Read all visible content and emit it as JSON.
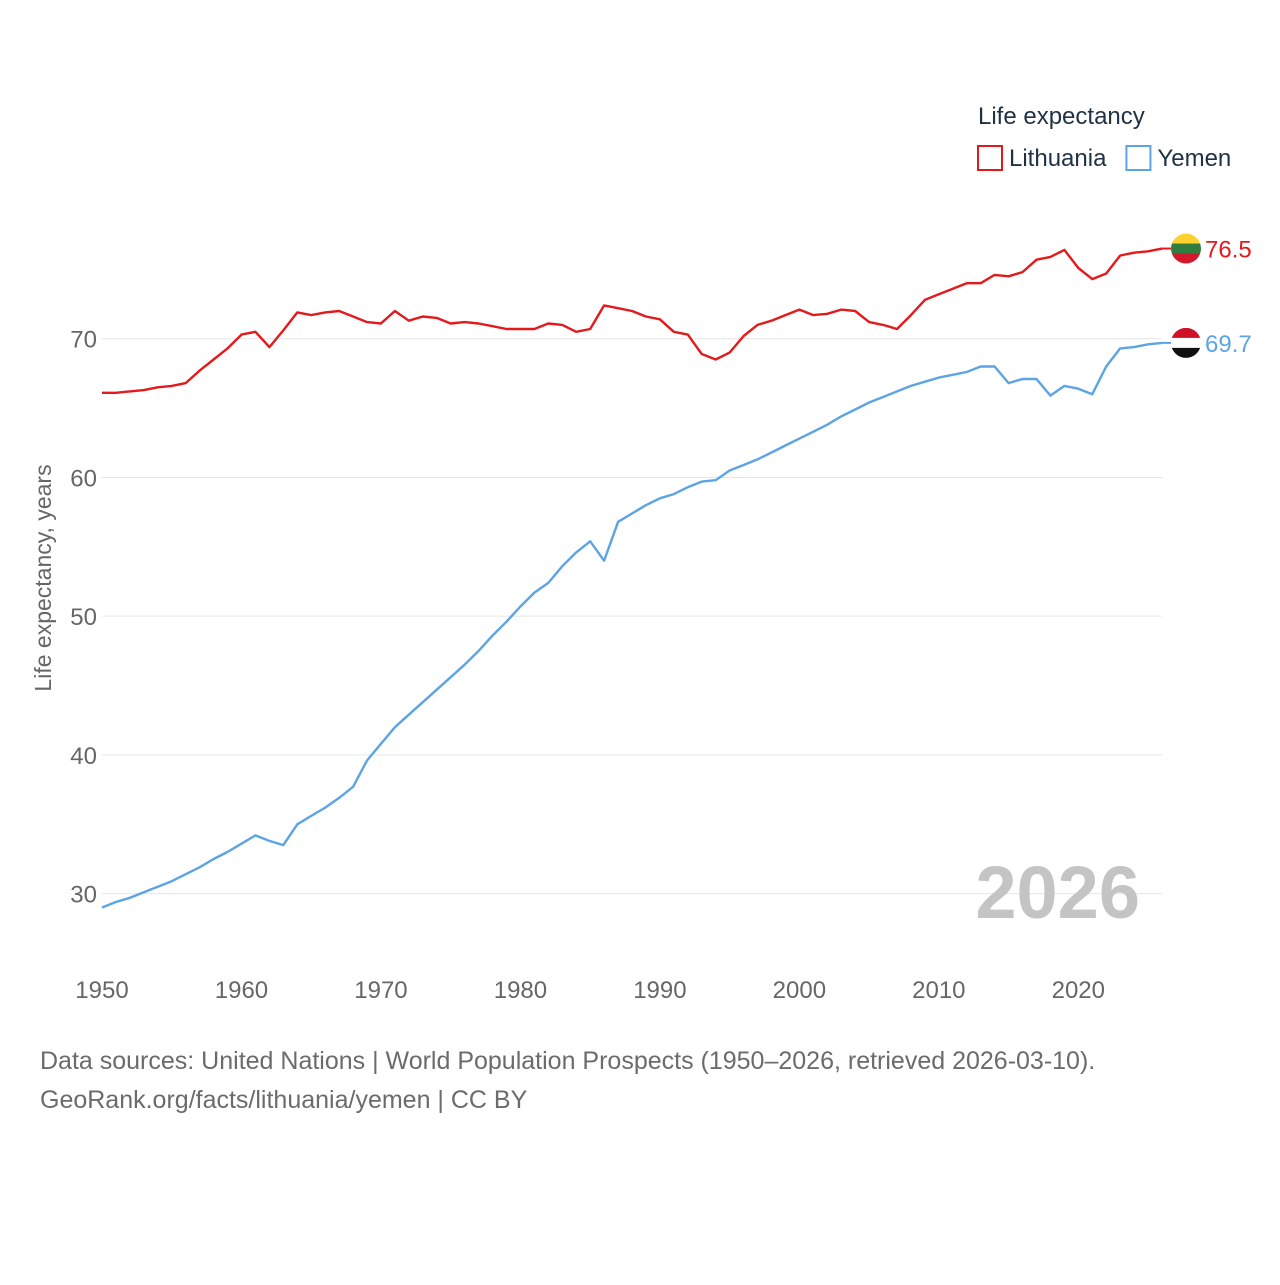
{
  "chart_data": {
    "type": "line",
    "legend_title": "Life expectancy",
    "ylabel": "Life expectancy, years",
    "xlim": [
      1950,
      2026
    ],
    "ylim": [
      25,
      80
    ],
    "x_ticks": [
      1950,
      1960,
      1970,
      1980,
      1990,
      2000,
      2010,
      2020
    ],
    "y_ticks": [
      30,
      40,
      50,
      60,
      70
    ],
    "year_watermark": "2026",
    "series": [
      {
        "name": "Lithuania",
        "color": "#e31a1c",
        "flag": "lithuania-flag",
        "end_label": "76.5",
        "x": [
          1950,
          1951,
          1952,
          1953,
          1954,
          1955,
          1956,
          1957,
          1958,
          1959,
          1960,
          1961,
          1962,
          1963,
          1964,
          1965,
          1966,
          1967,
          1968,
          1969,
          1970,
          1971,
          1972,
          1973,
          1974,
          1975,
          1976,
          1977,
          1978,
          1979,
          1980,
          1981,
          1982,
          1983,
          1984,
          1985,
          1986,
          1987,
          1988,
          1989,
          1990,
          1991,
          1992,
          1993,
          1994,
          1995,
          1996,
          1997,
          1998,
          1999,
          2000,
          2001,
          2002,
          2003,
          2004,
          2005,
          2006,
          2007,
          2008,
          2009,
          2010,
          2011,
          2012,
          2013,
          2014,
          2015,
          2016,
          2017,
          2018,
          2019,
          2020,
          2021,
          2022,
          2023,
          2024,
          2025,
          2026
        ],
        "y": [
          66.1,
          66.1,
          66.2,
          66.3,
          66.5,
          66.6,
          66.8,
          67.7,
          68.5,
          69.3,
          70.3,
          70.5,
          69.4,
          70.6,
          71.9,
          71.7,
          71.9,
          72.0,
          71.6,
          71.2,
          71.1,
          72.0,
          71.3,
          71.6,
          71.5,
          71.1,
          71.2,
          71.1,
          70.9,
          70.7,
          70.7,
          70.7,
          71.1,
          71.0,
          70.5,
          70.7,
          72.4,
          72.2,
          72.0,
          71.6,
          71.4,
          70.5,
          70.3,
          68.9,
          68.5,
          69.0,
          70.2,
          71.0,
          71.3,
          71.7,
          72.1,
          71.7,
          71.8,
          72.1,
          72.0,
          71.2,
          71.0,
          70.7,
          71.7,
          72.8,
          73.2,
          73.6,
          74.0,
          74.0,
          74.6,
          74.5,
          74.8,
          75.7,
          75.9,
          76.4,
          75.1,
          74.3,
          74.7,
          76.0,
          76.2,
          76.3,
          76.5
        ]
      },
      {
        "name": "Yemen",
        "color": "#5ca4e3",
        "flag": "yemen-flag",
        "end_label": "69.7",
        "x": [
          1950,
          1951,
          1952,
          1953,
          1954,
          1955,
          1956,
          1957,
          1958,
          1959,
          1960,
          1961,
          1962,
          1963,
          1964,
          1965,
          1966,
          1967,
          1968,
          1969,
          1970,
          1971,
          1972,
          1973,
          1974,
          1975,
          1976,
          1977,
          1978,
          1979,
          1980,
          1981,
          1982,
          1983,
          1984,
          1985,
          1986,
          1987,
          1988,
          1989,
          1990,
          1991,
          1992,
          1993,
          1994,
          1995,
          1996,
          1997,
          1998,
          1999,
          2000,
          2001,
          2002,
          2003,
          2004,
          2005,
          2006,
          2007,
          2008,
          2009,
          2010,
          2011,
          2012,
          2013,
          2014,
          2015,
          2016,
          2017,
          2018,
          2019,
          2020,
          2021,
          2022,
          2023,
          2024,
          2025,
          2026
        ],
        "y": [
          29.0,
          29.4,
          29.7,
          30.1,
          30.5,
          30.9,
          31.4,
          31.9,
          32.5,
          33.0,
          33.6,
          34.2,
          33.8,
          33.5,
          35.0,
          35.6,
          36.2,
          36.9,
          37.7,
          39.6,
          40.8,
          42.0,
          42.9,
          43.8,
          44.7,
          45.6,
          46.5,
          47.5,
          48.6,
          49.6,
          50.7,
          51.7,
          52.4,
          53.6,
          54.6,
          55.4,
          54.0,
          56.8,
          57.4,
          58.0,
          58.5,
          58.8,
          59.3,
          59.7,
          59.8,
          60.5,
          60.9,
          61.3,
          61.8,
          62.3,
          62.8,
          63.3,
          63.8,
          64.4,
          64.9,
          65.4,
          65.8,
          66.2,
          66.6,
          66.9,
          67.2,
          67.4,
          67.6,
          68.0,
          68.0,
          66.8,
          67.1,
          67.1,
          65.9,
          66.6,
          66.4,
          66.0,
          68.0,
          69.3,
          69.4,
          69.6,
          69.7
        ]
      }
    ]
  },
  "footer": {
    "line1": "Data sources: United Nations | World Population Prospects (1950–2026, retrieved 2026-03-10).",
    "line2": "GeoRank.org/facts/lithuania/yemen | CC BY"
  }
}
